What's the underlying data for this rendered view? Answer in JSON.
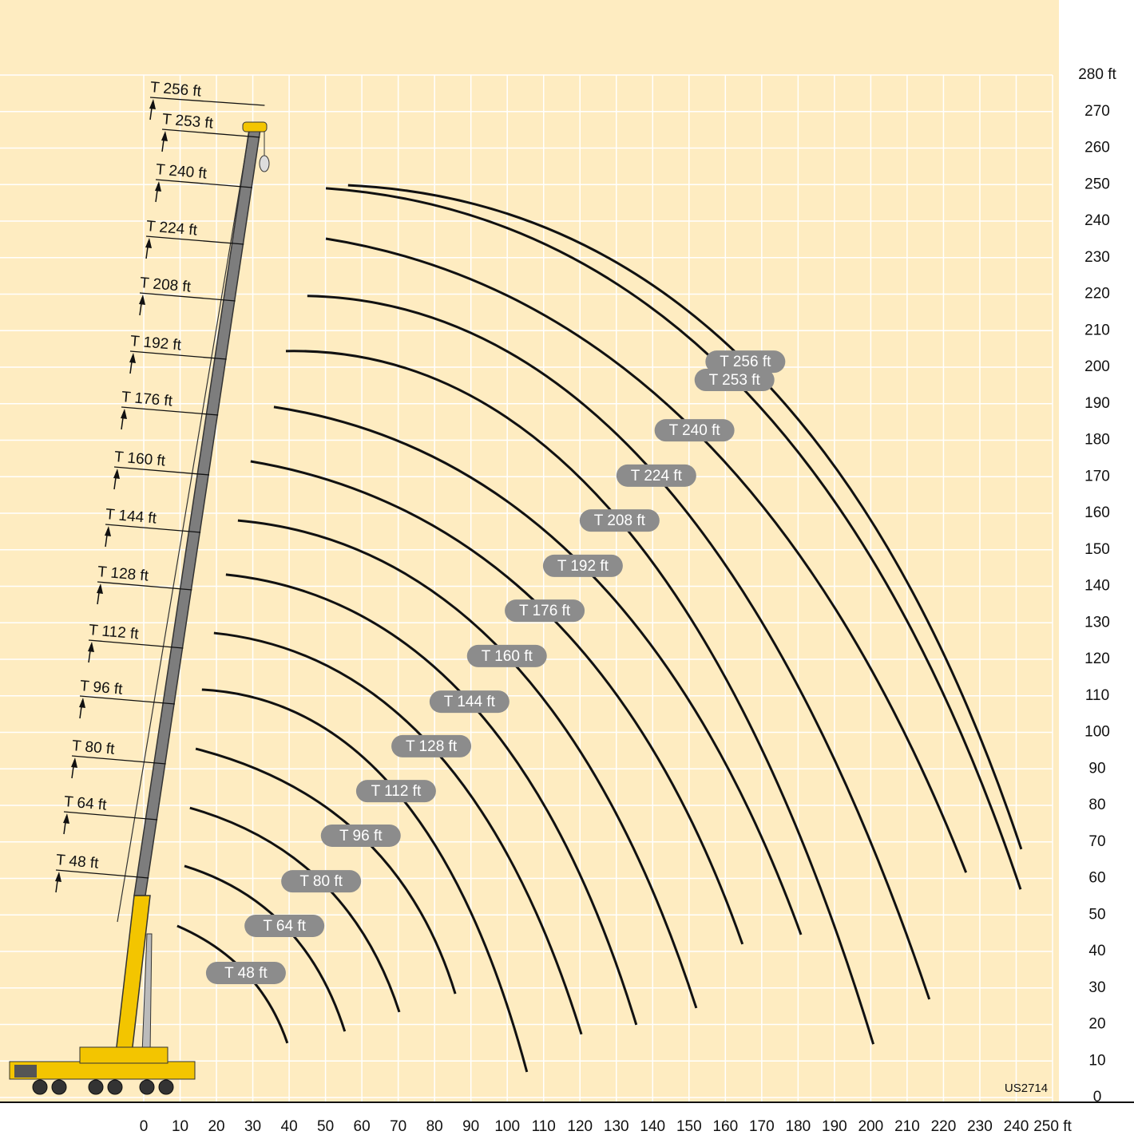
{
  "chart_data": {
    "type": "line",
    "annotation": "US2714",
    "color": "#111111",
    "grid": true,
    "xlim": [
      0,
      250
    ],
    "ylim": [
      0,
      280
    ],
    "xticks": [
      0,
      10,
      20,
      30,
      40,
      50,
      60,
      70,
      80,
      90,
      100,
      110,
      120,
      130,
      140,
      150,
      160,
      170,
      180,
      190,
      200,
      210,
      220,
      230,
      240,
      {
        "value": 250,
        "label": "250 ft"
      }
    ],
    "yticks": [
      0,
      10,
      20,
      30,
      40,
      50,
      60,
      70,
      80,
      90,
      100,
      110,
      120,
      130,
      140,
      150,
      160,
      170,
      180,
      190,
      200,
      210,
      220,
      230,
      240,
      250,
      260,
      270,
      {
        "value": 280,
        "label": "280 ft"
      }
    ],
    "series": [
      {
        "name": "T 48 ft",
        "x": [
          9.2,
          28.1,
          39.5
        ],
        "y": [
          47,
          34.1,
          14.9
        ]
      },
      {
        "name": "T 64 ft",
        "x": [
          11.2,
          38.7,
          55.3
        ],
        "y": [
          63.4,
          47,
          18.1
        ]
      },
      {
        "name": "T 80 ft",
        "x": [
          12.7,
          48.8,
          70.3
        ],
        "y": [
          79.3,
          59.2,
          23.4
        ]
      },
      {
        "name": "T 96 ft",
        "x": [
          14.3,
          59.7,
          85.7
        ],
        "y": [
          95.5,
          71.7,
          28.4
        ]
      },
      {
        "name": "T 112 ft",
        "x": [
          16,
          69.4,
          105.4
        ],
        "y": [
          111.7,
          83.9,
          7
        ]
      },
      {
        "name": "T 128 ft",
        "x": [
          19.3,
          79.1,
          120.4
        ],
        "y": [
          127.2,
          96.2,
          17.3
        ]
      },
      {
        "name": "T 144 ft",
        "x": [
          22.6,
          89.6,
          135.5
        ],
        "y": [
          143.2,
          108.4,
          19.9
        ]
      },
      {
        "name": "T 160 ft",
        "x": [
          25.9,
          99.9,
          152
        ],
        "y": [
          158,
          120.9,
          24.5
        ]
      },
      {
        "name": "T 176 ft",
        "x": [
          29.4,
          110.3,
          164.7
        ],
        "y": [
          174.2,
          133.3,
          42
        ]
      },
      {
        "name": "T 192 ft",
        "x": [
          35.8,
          120.8,
          180.8
        ],
        "y": [
          189.1,
          145.6,
          44.6
        ]
      },
      {
        "name": "T 208 ft",
        "x": [
          39.1,
          130.9,
          200.7
        ],
        "y": [
          204.4,
          158,
          14.6
        ]
      },
      {
        "name": "T 224 ft",
        "x": [
          45,
          141,
          216.1
        ],
        "y": [
          219.5,
          170.3,
          26.9
        ]
      },
      {
        "name": "T 240 ft",
        "x": [
          50.1,
          151.5,
          226.2
        ],
        "y": [
          235.2,
          182.7,
          61.6
        ]
      },
      {
        "name": "T 253 ft",
        "x": [
          50.1,
          162.5,
          241.2
        ],
        "y": [
          249,
          196.5,
          57
        ]
      },
      {
        "name": "T 256 ft",
        "x": [
          56.2,
          165.5,
          241.4
        ],
        "y": [
          249.8,
          201.5,
          68
        ]
      }
    ]
  }
}
